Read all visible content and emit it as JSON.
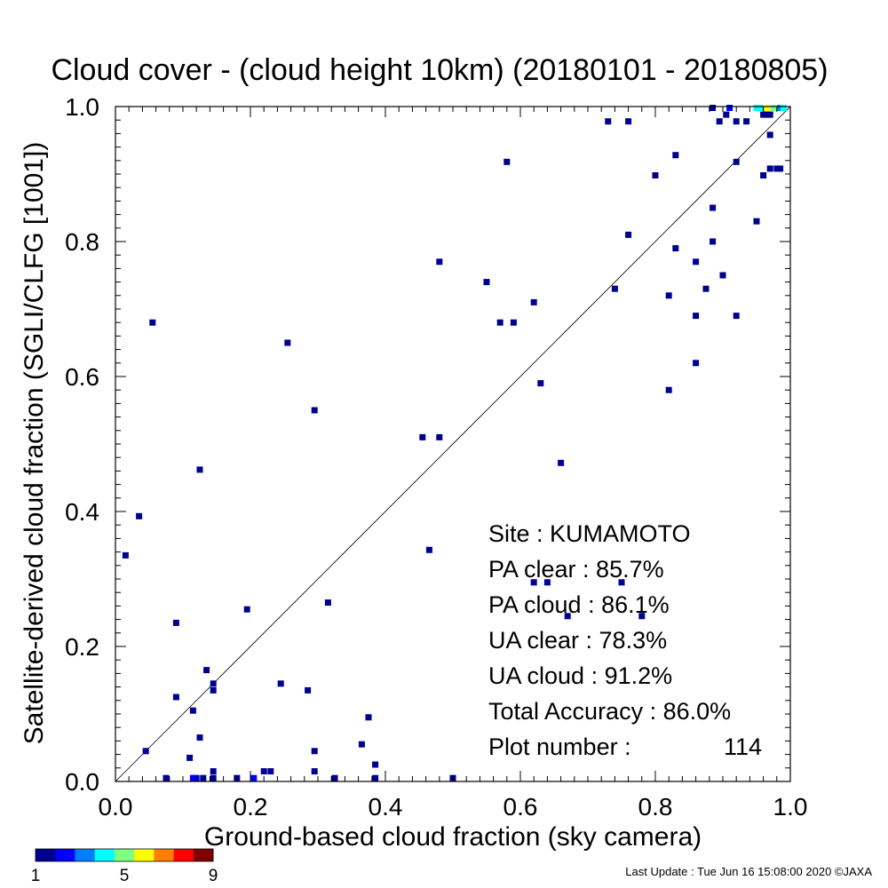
{
  "chart_data": {
    "type": "scatter",
    "title": "Cloud cover - (cloud height 10km)  (20180101 - 20180805)",
    "xlabel": "Ground-based cloud fraction (sky camera)",
    "ylabel": "Satellite-derived cloud fraction (SGLI/CLFG [1001])",
    "xlim": [
      0.0,
      1.0
    ],
    "ylim": [
      0.0,
      1.0
    ],
    "x_ticks": [
      "0.0",
      "0.2",
      "0.4",
      "0.6",
      "0.8",
      "1.0"
    ],
    "y_ticks": [
      "0.0",
      "0.2",
      "0.4",
      "0.6",
      "0.8",
      "1.0"
    ],
    "one_to_one_line": true,
    "grid": false,
    "points": [
      {
        "x": 0.015,
        "y": 0.335,
        "n": 1
      },
      {
        "x": 0.035,
        "y": 0.393,
        "n": 1
      },
      {
        "x": 0.045,
        "y": 0.045,
        "n": 1
      },
      {
        "x": 0.055,
        "y": 0.68,
        "n": 1
      },
      {
        "x": 0.075,
        "y": 0.005,
        "n": 1
      },
      {
        "x": 0.09,
        "y": 0.235,
        "n": 1
      },
      {
        "x": 0.09,
        "y": 0.125,
        "n": 1
      },
      {
        "x": 0.11,
        "y": 0.035,
        "n": 1
      },
      {
        "x": 0.115,
        "y": 0.105,
        "n": 1
      },
      {
        "x": 0.115,
        "y": 0.005,
        "n": 2
      },
      {
        "x": 0.12,
        "y": 0.005,
        "n": 2
      },
      {
        "x": 0.125,
        "y": 0.065,
        "n": 1
      },
      {
        "x": 0.125,
        "y": 0.462,
        "n": 1
      },
      {
        "x": 0.13,
        "y": 0.005,
        "n": 1
      },
      {
        "x": 0.135,
        "y": 0.165,
        "n": 1
      },
      {
        "x": 0.145,
        "y": 0.145,
        "n": 1
      },
      {
        "x": 0.145,
        "y": 0.135,
        "n": 1
      },
      {
        "x": 0.145,
        "y": 0.015,
        "n": 1
      },
      {
        "x": 0.145,
        "y": 0.005,
        "n": 1
      },
      {
        "x": 0.18,
        "y": 0.005,
        "n": 1
      },
      {
        "x": 0.195,
        "y": 0.255,
        "n": 1
      },
      {
        "x": 0.205,
        "y": 0.005,
        "n": 2
      },
      {
        "x": 0.22,
        "y": 0.015,
        "n": 1
      },
      {
        "x": 0.23,
        "y": 0.015,
        "n": 1
      },
      {
        "x": 0.245,
        "y": 0.145,
        "n": 1
      },
      {
        "x": 0.255,
        "y": 0.65,
        "n": 1
      },
      {
        "x": 0.285,
        "y": 0.135,
        "n": 1
      },
      {
        "x": 0.295,
        "y": 0.045,
        "n": 1
      },
      {
        "x": 0.295,
        "y": 0.015,
        "n": 1
      },
      {
        "x": 0.295,
        "y": 0.55,
        "n": 1
      },
      {
        "x": 0.315,
        "y": 0.265,
        "n": 1
      },
      {
        "x": 0.325,
        "y": 0.005,
        "n": 1
      },
      {
        "x": 0.365,
        "y": 0.055,
        "n": 1
      },
      {
        "x": 0.375,
        "y": 0.095,
        "n": 1
      },
      {
        "x": 0.385,
        "y": 0.025,
        "n": 1
      },
      {
        "x": 0.385,
        "y": 0.005,
        "n": 1
      },
      {
        "x": 0.455,
        "y": 0.51,
        "n": 1
      },
      {
        "x": 0.465,
        "y": 0.343,
        "n": 1
      },
      {
        "x": 0.48,
        "y": 0.51,
        "n": 1
      },
      {
        "x": 0.48,
        "y": 0.77,
        "n": 1
      },
      {
        "x": 0.5,
        "y": 0.005,
        "n": 1
      },
      {
        "x": 0.55,
        "y": 0.74,
        "n": 1
      },
      {
        "x": 0.57,
        "y": 0.68,
        "n": 1
      },
      {
        "x": 0.58,
        "y": 0.918,
        "n": 1
      },
      {
        "x": 0.59,
        "y": 0.68,
        "n": 1
      },
      {
        "x": 0.62,
        "y": 0.71,
        "n": 1
      },
      {
        "x": 0.62,
        "y": 0.295,
        "n": 1
      },
      {
        "x": 0.63,
        "y": 0.59,
        "n": 1
      },
      {
        "x": 0.64,
        "y": 0.295,
        "n": 1
      },
      {
        "x": 0.66,
        "y": 0.472,
        "n": 1
      },
      {
        "x": 0.67,
        "y": 0.245,
        "n": 1
      },
      {
        "x": 0.73,
        "y": 0.978,
        "n": 1
      },
      {
        "x": 0.74,
        "y": 0.73,
        "n": 1
      },
      {
        "x": 0.75,
        "y": 0.295,
        "n": 1
      },
      {
        "x": 0.76,
        "y": 0.978,
        "n": 1
      },
      {
        "x": 0.76,
        "y": 0.81,
        "n": 1
      },
      {
        "x": 0.78,
        "y": 0.245,
        "n": 1
      },
      {
        "x": 0.8,
        "y": 0.898,
        "n": 1
      },
      {
        "x": 0.82,
        "y": 0.72,
        "n": 1
      },
      {
        "x": 0.82,
        "y": 0.58,
        "n": 1
      },
      {
        "x": 0.83,
        "y": 0.928,
        "n": 1
      },
      {
        "x": 0.83,
        "y": 0.79,
        "n": 1
      },
      {
        "x": 0.86,
        "y": 0.77,
        "n": 1
      },
      {
        "x": 0.86,
        "y": 0.69,
        "n": 1
      },
      {
        "x": 0.86,
        "y": 0.62,
        "n": 1
      },
      {
        "x": 0.875,
        "y": 0.73,
        "n": 1
      },
      {
        "x": 0.885,
        "y": 0.85,
        "n": 1
      },
      {
        "x": 0.885,
        "y": 0.8,
        "n": 1
      },
      {
        "x": 0.885,
        "y": 0.998,
        "n": 1
      },
      {
        "x": 0.895,
        "y": 0.978,
        "n": 1
      },
      {
        "x": 0.9,
        "y": 0.75,
        "n": 1
      },
      {
        "x": 0.905,
        "y": 0.988,
        "n": 1
      },
      {
        "x": 0.91,
        "y": 0.998,
        "n": 2
      },
      {
        "x": 0.92,
        "y": 0.918,
        "n": 1
      },
      {
        "x": 0.92,
        "y": 0.978,
        "n": 1
      },
      {
        "x": 0.92,
        "y": 0.69,
        "n": 1
      },
      {
        "x": 0.935,
        "y": 0.978,
        "n": 1
      },
      {
        "x": 0.95,
        "y": 0.83,
        "n": 1
      },
      {
        "x": 0.95,
        "y": 0.998,
        "n": 4
      },
      {
        "x": 0.955,
        "y": 0.998,
        "n": 4
      },
      {
        "x": 0.96,
        "y": 0.898,
        "n": 1
      },
      {
        "x": 0.96,
        "y": 0.988,
        "n": 1
      },
      {
        "x": 0.965,
        "y": 0.998,
        "n": 6
      },
      {
        "x": 0.965,
        "y": 0.988,
        "n": 1
      },
      {
        "x": 0.97,
        "y": 0.958,
        "n": 1
      },
      {
        "x": 0.97,
        "y": 0.908,
        "n": 1
      },
      {
        "x": 0.97,
        "y": 0.988,
        "n": 1
      },
      {
        "x": 0.975,
        "y": 0.998,
        "n": 5
      },
      {
        "x": 0.98,
        "y": 0.908,
        "n": 1
      },
      {
        "x": 0.985,
        "y": 0.998,
        "n": 3
      },
      {
        "x": 0.985,
        "y": 0.908,
        "n": 1
      },
      {
        "x": 0.99,
        "y": 0.998,
        "n": 4
      }
    ],
    "colorbar": {
      "min": 1,
      "max": 9,
      "tick_labels": [
        "1",
        "5",
        "9"
      ],
      "colors": [
        "#00008f",
        "#0000ff",
        "#0080ff",
        "#00ffff",
        "#80ff80",
        "#ffff00",
        "#ff8000",
        "#ff0000",
        "#800000"
      ]
    },
    "stats": [
      "Site : KUMAMOTO",
      "PA clear :  85.7%",
      "PA cloud :  86.1%",
      "UA clear :  78.3%",
      "UA cloud :  91.2%",
      "Total Accuracy :  86.0%"
    ],
    "plot_number_label": "Plot number :",
    "plot_number_value": "114",
    "footer": "Last Update : Tue Jun 16 15:08:00 2020  ©JAXA"
  }
}
